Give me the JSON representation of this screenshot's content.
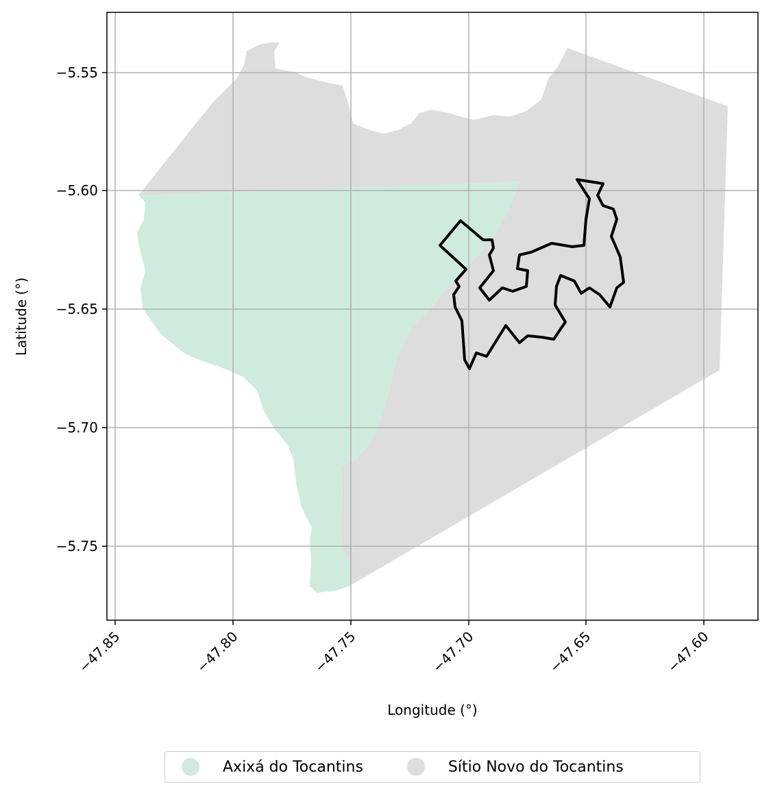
{
  "map": {
    "xlabel": "Longitude (°)",
    "ylabel": "Latitude (°)",
    "x_ticks": [
      "−47.85",
      "−47.80",
      "−47.75",
      "−47.70",
      "−47.65",
      "−47.60"
    ],
    "y_ticks": [
      "−5.55",
      "−5.60",
      "−5.65",
      "−5.70",
      "−5.75"
    ],
    "grid": true,
    "legend_placement": "bottom-center",
    "legend": [
      {
        "label": "Axixá do Tocantins",
        "color": "#cfebdd"
      },
      {
        "label": "Sítio Novo do Tocantins",
        "color": "#dddddd"
      }
    ],
    "outline_color": "#000000"
  }
}
